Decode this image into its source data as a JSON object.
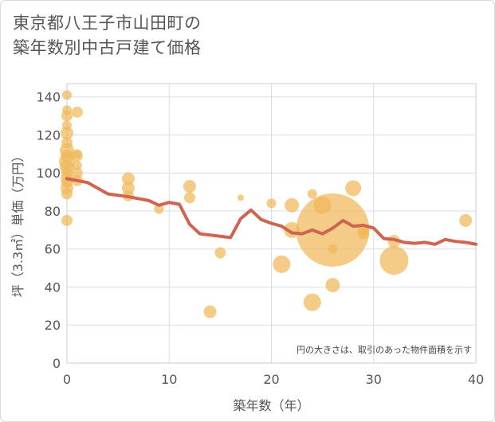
{
  "title_lines": [
    "東京都八王子市山田町の",
    "築年数別中古戸建て価格"
  ],
  "chart_data": {
    "type": "scatter",
    "xlabel": "築年数（年）",
    "ylabel": "坪（3.3㎡）単価（万円）",
    "xlim": [
      0,
      40
    ],
    "ylim": [
      0,
      147
    ],
    "xticks": [
      0,
      10,
      20,
      30,
      40
    ],
    "yticks": [
      0,
      20,
      40,
      60,
      80,
      100,
      120,
      140
    ],
    "note": "円の大きさは、取引のあった物件面積を示す",
    "colors": {
      "bubble": "#f0b85a",
      "line": "#d06450",
      "grid": "#d8dde6",
      "plot_border": "#c8ced8"
    },
    "scatter": [
      {
        "x": 0,
        "y": 141,
        "r": 6
      },
      {
        "x": 0,
        "y": 133,
        "r": 6
      },
      {
        "x": 0,
        "y": 130,
        "r": 7
      },
      {
        "x": 0,
        "y": 125,
        "r": 6
      },
      {
        "x": 0,
        "y": 121,
        "r": 8
      },
      {
        "x": 0,
        "y": 116,
        "r": 7
      },
      {
        "x": 0,
        "y": 112,
        "r": 9
      },
      {
        "x": 0,
        "y": 109,
        "r": 8
      },
      {
        "x": 0,
        "y": 106,
        "r": 10
      },
      {
        "x": 0,
        "y": 103,
        "r": 9
      },
      {
        "x": 0,
        "y": 100,
        "r": 7
      },
      {
        "x": 0,
        "y": 97,
        "r": 8
      },
      {
        "x": 0,
        "y": 95,
        "r": 7
      },
      {
        "x": 0,
        "y": 92,
        "r": 8
      },
      {
        "x": 0,
        "y": 89,
        "r": 7
      },
      {
        "x": 0,
        "y": 75,
        "r": 7
      },
      {
        "x": 1,
        "y": 132,
        "r": 7
      },
      {
        "x": 1,
        "y": 110,
        "r": 6
      },
      {
        "x": 1,
        "y": 109,
        "r": 7
      },
      {
        "x": 1,
        "y": 104,
        "r": 6
      },
      {
        "x": 1,
        "y": 100,
        "r": 7
      },
      {
        "x": 1,
        "y": 96,
        "r": 7
      },
      {
        "x": 6,
        "y": 97,
        "r": 8
      },
      {
        "x": 6,
        "y": 92,
        "r": 8
      },
      {
        "x": 6,
        "y": 88,
        "r": 7
      },
      {
        "x": 9,
        "y": 81,
        "r": 6
      },
      {
        "x": 12,
        "y": 93,
        "r": 8
      },
      {
        "x": 12,
        "y": 87,
        "r": 7
      },
      {
        "x": 14,
        "y": 27,
        "r": 8
      },
      {
        "x": 15,
        "y": 58,
        "r": 7
      },
      {
        "x": 17,
        "y": 87,
        "r": 4
      },
      {
        "x": 20,
        "y": 84,
        "r": 6
      },
      {
        "x": 21,
        "y": 52,
        "r": 11
      },
      {
        "x": 22,
        "y": 83,
        "r": 9
      },
      {
        "x": 22,
        "y": 70,
        "r": 10
      },
      {
        "x": 24,
        "y": 89,
        "r": 6
      },
      {
        "x": 24,
        "y": 32,
        "r": 11
      },
      {
        "x": 25,
        "y": 83,
        "r": 11
      },
      {
        "x": 26,
        "y": 70,
        "r": 46
      },
      {
        "x": 26,
        "y": 60,
        "r": 6
      },
      {
        "x": 26,
        "y": 41,
        "r": 9
      },
      {
        "x": 28,
        "y": 92,
        "r": 10
      },
      {
        "x": 29,
        "y": 70,
        "r": 7
      },
      {
        "x": 29,
        "y": 68,
        "r": 7
      },
      {
        "x": 32,
        "y": 54,
        "r": 18
      },
      {
        "x": 32,
        "y": 64,
        "r": 8
      },
      {
        "x": 39,
        "y": 75,
        "r": 8
      }
    ],
    "line": {
      "x": [
        0,
        2,
        4,
        6,
        8,
        9,
        10,
        11,
        12,
        13,
        16,
        17,
        18,
        19,
        20,
        21,
        22,
        23,
        24,
        25,
        26,
        27,
        28,
        29,
        30,
        31,
        32,
        33,
        34,
        35,
        36,
        37,
        38,
        39,
        40
      ],
      "y": [
        97,
        95,
        89,
        87.5,
        85.5,
        83,
        84.5,
        83.5,
        73,
        68,
        66,
        76,
        80.5,
        75.5,
        73.5,
        72,
        68.5,
        68,
        70,
        68,
        71,
        75,
        72,
        72.5,
        71,
        65.5,
        65,
        63.5,
        63,
        63.5,
        62.5,
        65,
        64,
        63.5,
        62.5
      ]
    }
  }
}
